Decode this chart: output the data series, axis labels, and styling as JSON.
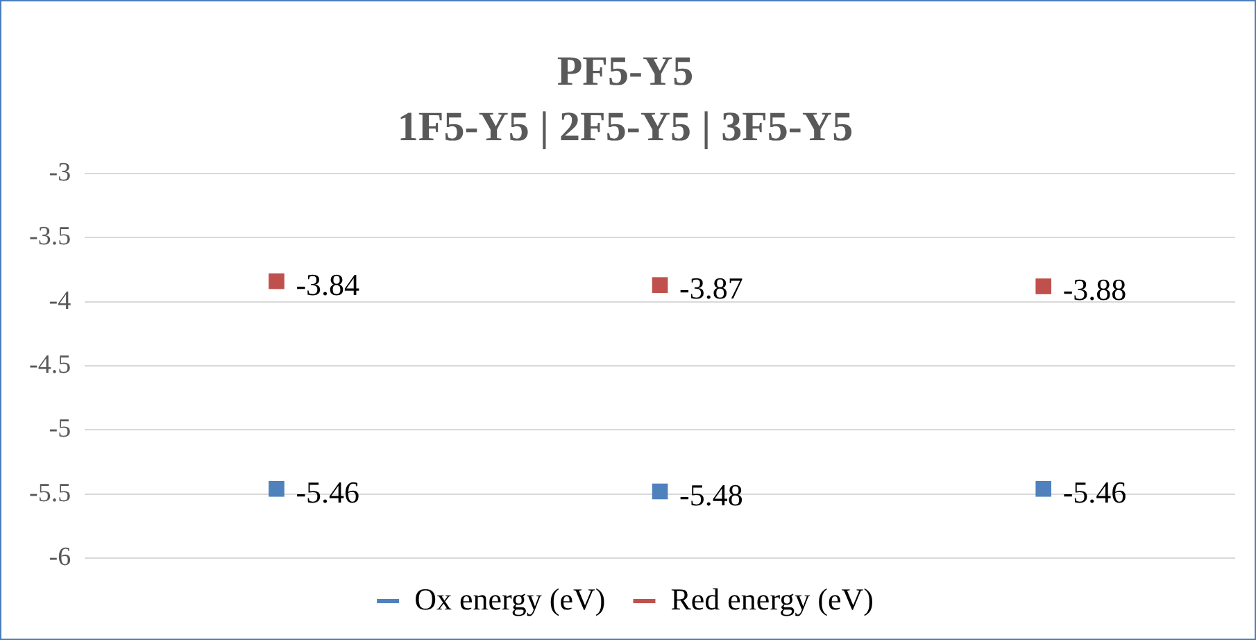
{
  "chart_data": {
    "type": "scatter",
    "title": "PF5-Y5",
    "subtitle": "1F5-Y5 | 2F5-Y5 | 3F5-Y5",
    "categories": [
      null,
      null,
      null
    ],
    "series": [
      {
        "name": "Ox energy (eV)",
        "color": "#4f81bd",
        "values": [
          -5.46,
          -5.48,
          -5.46
        ]
      },
      {
        "name": "Red energy (eV)",
        "color": "#c0504d",
        "values": [
          -3.84,
          -3.87,
          -3.88
        ]
      }
    ],
    "ylim": [
      -6,
      -3
    ],
    "yticks": [
      -3,
      -3.5,
      -4,
      -4.5,
      -5,
      -5.5,
      -6
    ],
    "grid": "y",
    "legend": "bottom",
    "tick_labels": "y",
    "marker": "square",
    "data_labels": true
  }
}
